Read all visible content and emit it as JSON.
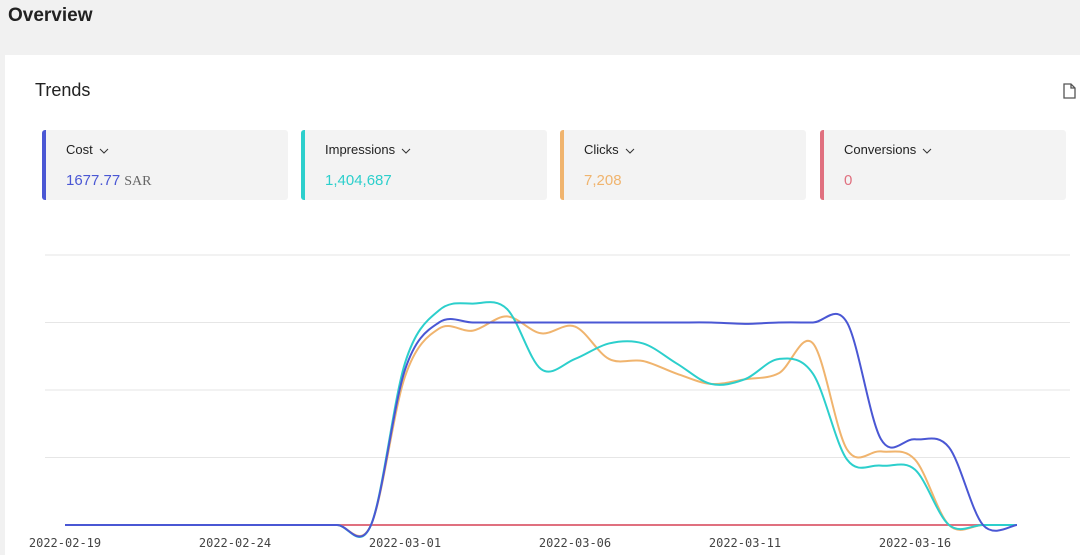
{
  "header": {
    "title": "Overview"
  },
  "card": {
    "title": "Trends"
  },
  "metrics": [
    {
      "value": "1677.77",
      "unit": "SAR"
    },
    {
      "value": "1,404,687"
    },
    {
      "value": "7,208"
    },
    {
      "value": "0"
    }
  ],
  "chart_data": {
    "type": "line",
    "categories": [
      "2022-02-19",
      null,
      null,
      null,
      null,
      "2022-02-24",
      null,
      null,
      null,
      null,
      "2022-03-01",
      null,
      null,
      null,
      null,
      "2022-03-06",
      null,
      null,
      null,
      null,
      "2022-03-11",
      null,
      null,
      null,
      null,
      "2022-03-16",
      null,
      null,
      null
    ],
    "ylim": [
      0,
      4
    ],
    "yticks": [
      1,
      2,
      3,
      4
    ],
    "grid": true,
    "series": [
      {
        "name": "Cost",
        "color": "#4a57d4",
        "values": [
          0,
          0,
          0,
          0,
          0,
          0,
          0,
          0,
          0,
          0,
          2.3,
          3,
          3,
          3,
          3,
          3,
          3,
          3,
          3,
          3,
          2.98,
          3,
          3,
          3,
          1.27,
          1.27,
          1.15,
          0,
          0
        ]
      },
      {
        "name": "Impressions",
        "color": "#2ccfcc",
        "values": [
          0,
          0,
          0,
          0,
          0,
          0,
          0,
          0,
          0,
          0,
          2.4,
          3.18,
          3.28,
          3.2,
          2.31,
          2.46,
          2.69,
          2.69,
          2.39,
          2.09,
          2.16,
          2.46,
          2.24,
          0.97,
          0.88,
          0.82,
          0,
          0,
          0
        ]
      },
      {
        "name": "Clicks",
        "color": "#f0b46e",
        "values": [
          0,
          0,
          0,
          0,
          0,
          0,
          0,
          0,
          0,
          0,
          2.2,
          2.91,
          2.88,
          3.09,
          2.84,
          2.94,
          2.46,
          2.43,
          2.24,
          2.09,
          2.16,
          2.25,
          2.69,
          1.12,
          1.09,
          0.97,
          0,
          0,
          0
        ]
      },
      {
        "name": "Conversions",
        "color": "#e0707f",
        "values": [
          0,
          0,
          0,
          0,
          0,
          0,
          0,
          0,
          0,
          0,
          0,
          0,
          0,
          0,
          0,
          0,
          0,
          0,
          0,
          0,
          0,
          0,
          0,
          0,
          0,
          0,
          0,
          0,
          0
        ]
      }
    ]
  }
}
